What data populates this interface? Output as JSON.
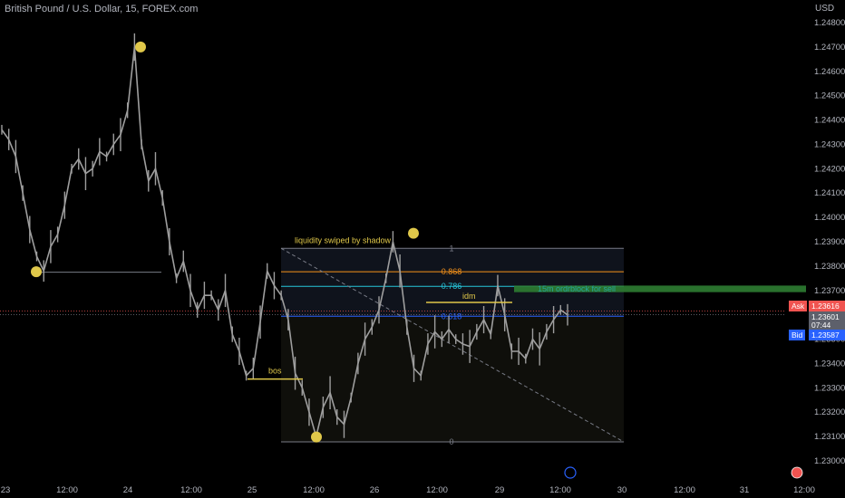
{
  "header": {
    "symbol": "British Pound / U.S. Dollar, 15, FOREX.com",
    "currency": "USD"
  },
  "price_axis": {
    "labels": [
      "1.24800",
      "1.24700",
      "1.24600",
      "1.24500",
      "1.24400",
      "1.24300",
      "1.24200",
      "1.24100",
      "1.24000",
      "1.23900",
      "1.23800",
      "1.23700",
      "1.23500",
      "1.23400",
      "1.23300",
      "1.23200",
      "1.23100",
      "1.23000"
    ]
  },
  "time_axis": {
    "labels": [
      "23",
      "12:00",
      "24",
      "12:00",
      "25",
      "12:00",
      "26",
      "12:00",
      "29",
      "12:00",
      "30",
      "12:00",
      "31",
      "12:00",
      "12:"
    ]
  },
  "price_tags": {
    "ask": {
      "label": "Ask",
      "value": "1.23616",
      "color": "#f05350"
    },
    "last": {
      "value": "1.23601",
      "sub": "07:44",
      "color": "#787b86"
    },
    "bid": {
      "label": "Bid",
      "value": "1.23587",
      "color": "#2962ff"
    }
  },
  "annotations": {
    "liquidity": "liquidity swiped by shadow",
    "bos": "bos",
    "idm": "idm",
    "orderblock": "15m ordrblock for sell",
    "fib_levels": [
      {
        "label": "1",
        "price": 1.23873,
        "color": "#787b86"
      },
      {
        "label": "0.868",
        "price": 1.23777,
        "color": "#f7931a"
      },
      {
        "label": "0.786",
        "price": 1.23717,
        "color": "#26c6da"
      },
      {
        "label": "0.618",
        "price": 1.23594,
        "color": "#2962ff"
      },
      {
        "label": "0",
        "price": 1.23078,
        "color": "#787b86"
      }
    ]
  },
  "colors": {
    "background": "#000000",
    "candles": "#9e9e9e",
    "accent": "#e0c84a",
    "orderblock": "#2e7d32"
  },
  "chart_data": {
    "type": "line",
    "title": "British Pound / U.S. Dollar, 15, FOREX.com",
    "ylabel": "USD",
    "ylim": [
      1.2297,
      1.2485
    ],
    "x_labels": [
      "23",
      "12:00",
      "24",
      "12:00",
      "25",
      "12:00",
      "26",
      "12:00",
      "29",
      "12:00",
      "30",
      "12:00",
      "31",
      "12:00"
    ],
    "series": [
      {
        "values": [
          1.2436,
          1.2432,
          1.2425,
          1.241,
          1.2395,
          1.2384,
          1.2378,
          1.2388,
          1.2393,
          1.2405,
          1.242,
          1.2424,
          1.2418,
          1.242,
          1.2427,
          1.2425,
          1.243,
          1.2434,
          1.2444,
          1.247,
          1.243,
          1.2415,
          1.242,
          1.2408,
          1.239,
          1.2375,
          1.2382,
          1.237,
          1.2362,
          1.2368,
          1.2368,
          1.2362,
          1.237,
          1.2352,
          1.2345,
          1.2335,
          1.2338,
          1.2357,
          1.2378,
          1.2372,
          1.2368,
          1.2358,
          1.2336,
          1.233,
          1.232,
          1.231,
          1.2322,
          1.2328,
          1.2318,
          1.2315,
          1.2326,
          1.234,
          1.235,
          1.2355,
          1.2362,
          1.2375,
          1.239,
          1.2378,
          1.2355,
          1.2338,
          1.2335,
          1.2348,
          1.2353,
          1.235,
          1.2354,
          1.235,
          1.2348,
          1.2347,
          1.2353,
          1.2358,
          1.2352,
          1.2372,
          1.236,
          1.2345,
          1.2345,
          1.2342,
          1.235,
          1.2346,
          1.2353,
          1.2358,
          1.2362,
          1.236
        ]
      }
    ],
    "markers": [
      {
        "label": "swing-high",
        "price": 1.247
      },
      {
        "label": "swing-low",
        "price": 1.2377
      },
      {
        "label": "liquidity-high",
        "price": 1.23905
      },
      {
        "label": "swing-low-2",
        "price": 1.23098
      }
    ],
    "grid": false
  }
}
